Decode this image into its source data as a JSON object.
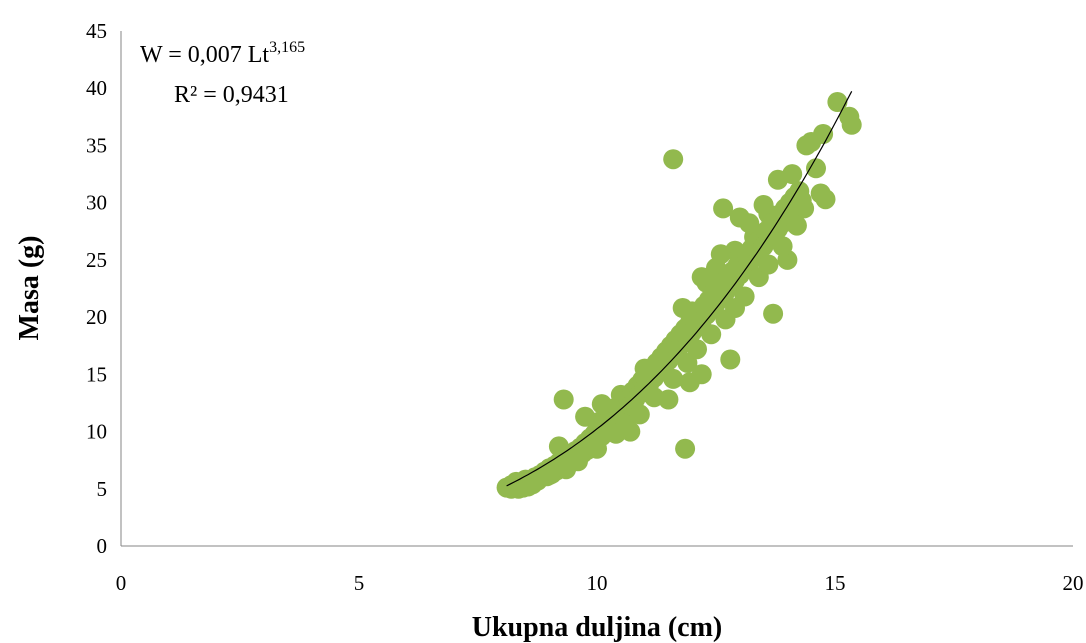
{
  "chart_data": {
    "type": "scatter",
    "title": "",
    "xlabel": "Ukupna duljina (cm)",
    "ylabel": "Masa (g)",
    "xlim": [
      0,
      20
    ],
    "ylim": [
      0,
      45
    ],
    "x_ticks": [
      "0",
      "5",
      "10",
      "15",
      "20"
    ],
    "y_ticks": [
      "0",
      "5",
      "10",
      "15",
      "20",
      "25",
      "30",
      "35",
      "40",
      "45"
    ],
    "grid": false,
    "legend": "none",
    "point_color": "#92b94e",
    "trendline_color": "#000000",
    "equation": {
      "line1_prefix": "W = 0,007 Lt",
      "line1_exponent": "3,165",
      "line2": "R² = 0,9431"
    },
    "trendline": {
      "type": "power",
      "a": 0.007,
      "b": 3.165,
      "x_range": [
        8.1,
        15.35
      ]
    },
    "series": [
      {
        "points": [
          [
            8.1,
            5.1
          ],
          [
            8.2,
            5.3
          ],
          [
            8.3,
            5.6
          ],
          [
            8.35,
            5.0
          ],
          [
            8.4,
            5.4
          ],
          [
            8.5,
            5.8
          ],
          [
            8.55,
            5.2
          ],
          [
            8.6,
            5.5
          ],
          [
            8.7,
            6.0
          ],
          [
            8.75,
            5.7
          ],
          [
            8.8,
            6.2
          ],
          [
            8.9,
            6.5
          ],
          [
            8.95,
            6.1
          ],
          [
            9.0,
            6.8
          ],
          [
            9.05,
            6.3
          ],
          [
            9.1,
            7.0
          ],
          [
            9.15,
            6.6
          ],
          [
            9.2,
            7.3
          ],
          [
            9.25,
            6.9
          ],
          [
            9.3,
            7.6
          ],
          [
            9.2,
            8.7
          ],
          [
            9.3,
            12.8
          ],
          [
            9.4,
            7.1
          ],
          [
            9.45,
            8.0
          ],
          [
            9.5,
            7.5
          ],
          [
            9.55,
            8.3
          ],
          [
            9.6,
            7.8
          ],
          [
            9.65,
            8.6
          ],
          [
            9.7,
            8.1
          ],
          [
            9.75,
            9.0
          ],
          [
            9.8,
            8.4
          ],
          [
            9.85,
            9.4
          ],
          [
            9.75,
            11.3
          ],
          [
            9.9,
            8.8
          ],
          [
            9.95,
            9.8
          ],
          [
            10.0,
            9.2
          ],
          [
            10.0,
            10.8
          ],
          [
            10.05,
            10.2
          ],
          [
            10.1,
            9.6
          ],
          [
            10.1,
            12.4
          ],
          [
            10.15,
            10.6
          ],
          [
            10.2,
            10.0
          ],
          [
            10.25,
            11.0
          ],
          [
            10.3,
            10.4
          ],
          [
            10.3,
            12.0
          ],
          [
            10.35,
            11.5
          ],
          [
            10.4,
            10.8
          ],
          [
            10.45,
            12.0
          ],
          [
            10.5,
            11.3
          ],
          [
            10.5,
            13.2
          ],
          [
            10.55,
            12.5
          ],
          [
            10.6,
            11.8
          ],
          [
            10.65,
            13.0
          ],
          [
            10.7,
            10.0
          ],
          [
            10.7,
            12.3
          ],
          [
            10.75,
            13.5
          ],
          [
            10.8,
            12.8
          ],
          [
            10.85,
            14.0
          ],
          [
            10.9,
            13.3
          ],
          [
            10.95,
            14.5
          ],
          [
            11.0,
            13.8
          ],
          [
            11.0,
            15.5
          ],
          [
            11.05,
            15.0
          ],
          [
            11.1,
            14.2
          ],
          [
            11.15,
            15.5
          ],
          [
            11.2,
            14.7
          ],
          [
            11.25,
            16.0
          ],
          [
            11.3,
            15.2
          ],
          [
            11.35,
            16.5
          ],
          [
            11.4,
            15.7
          ],
          [
            11.45,
            17.0
          ],
          [
            11.5,
            16.2
          ],
          [
            11.55,
            17.5
          ],
          [
            11.5,
            12.8
          ],
          [
            11.6,
            16.7
          ],
          [
            11.65,
            18.0
          ],
          [
            11.6,
            33.8
          ],
          [
            11.7,
            17.2
          ],
          [
            11.75,
            18.5
          ],
          [
            11.8,
            17.7
          ],
          [
            11.85,
            19.0
          ],
          [
            11.85,
            8.5
          ],
          [
            11.9,
            18.2
          ],
          [
            11.95,
            19.5
          ],
          [
            11.95,
            14.3
          ],
          [
            12.0,
            18.7
          ],
          [
            12.0,
            20.5
          ],
          [
            12.05,
            20.0
          ],
          [
            12.1,
            19.2
          ],
          [
            12.15,
            20.5
          ],
          [
            12.2,
            19.7
          ],
          [
            12.25,
            21.0
          ],
          [
            12.2,
            15.0
          ],
          [
            12.3,
            20.2
          ],
          [
            12.35,
            21.5
          ],
          [
            12.3,
            23.0
          ],
          [
            12.4,
            20.7
          ],
          [
            12.45,
            22.0
          ],
          [
            12.5,
            21.2
          ],
          [
            12.5,
            24.3
          ],
          [
            12.55,
            22.5
          ],
          [
            12.6,
            21.7
          ],
          [
            12.65,
            23.0
          ],
          [
            12.7,
            22.2
          ],
          [
            12.65,
            29.5
          ],
          [
            12.75,
            23.5
          ],
          [
            12.8,
            22.7
          ],
          [
            12.8,
            16.3
          ],
          [
            12.85,
            24.0
          ],
          [
            12.9,
            23.2
          ],
          [
            12.9,
            25.8
          ],
          [
            12.95,
            24.5
          ],
          [
            13.0,
            23.7
          ],
          [
            13.0,
            28.7
          ],
          [
            13.05,
            25.0
          ],
          [
            13.1,
            24.2
          ],
          [
            13.15,
            25.5
          ],
          [
            13.2,
            24.7
          ],
          [
            13.25,
            26.0
          ],
          [
            13.3,
            25.2
          ],
          [
            13.3,
            27.0
          ],
          [
            13.35,
            26.5
          ],
          [
            13.4,
            25.7
          ],
          [
            13.45,
            27.0
          ],
          [
            13.5,
            26.2
          ],
          [
            13.55,
            27.5
          ],
          [
            13.6,
            26.7
          ],
          [
            13.6,
            29.0
          ],
          [
            13.65,
            28.0
          ],
          [
            13.7,
            27.2
          ],
          [
            13.7,
            20.3
          ],
          [
            13.75,
            28.5
          ],
          [
            13.8,
            27.7
          ],
          [
            13.8,
            32.0
          ],
          [
            13.85,
            29.0
          ],
          [
            13.9,
            28.2
          ],
          [
            13.95,
            29.5
          ],
          [
            14.0,
            28.7
          ],
          [
            14.0,
            25.0
          ],
          [
            14.05,
            30.0
          ],
          [
            14.1,
            29.2
          ],
          [
            14.1,
            32.5
          ],
          [
            14.15,
            30.5
          ],
          [
            14.2,
            29.7
          ],
          [
            14.25,
            31.0
          ],
          [
            14.3,
            30.2
          ],
          [
            14.35,
            29.5
          ],
          [
            14.4,
            35.0
          ],
          [
            14.5,
            35.3
          ],
          [
            14.6,
            33.0
          ],
          [
            14.7,
            30.8
          ],
          [
            14.75,
            36.0
          ],
          [
            14.8,
            30.3
          ],
          [
            15.05,
            38.8
          ],
          [
            15.3,
            37.5
          ],
          [
            15.35,
            36.8
          ],
          [
            8.2,
            5.0
          ],
          [
            8.45,
            5.1
          ],
          [
            8.65,
            5.4
          ],
          [
            9.0,
            6.2
          ],
          [
            9.35,
            6.7
          ],
          [
            9.6,
            7.4
          ],
          [
            10.0,
            8.5
          ],
          [
            10.4,
            9.8
          ],
          [
            10.6,
            10.6
          ],
          [
            10.9,
            11.5
          ],
          [
            11.2,
            13.0
          ],
          [
            11.6,
            14.6
          ],
          [
            11.9,
            16.0
          ],
          [
            12.1,
            17.2
          ],
          [
            12.4,
            18.5
          ],
          [
            12.7,
            19.8
          ],
          [
            12.9,
            20.8
          ],
          [
            13.1,
            21.8
          ],
          [
            13.4,
            23.5
          ],
          [
            13.6,
            24.6
          ],
          [
            13.9,
            26.2
          ],
          [
            14.2,
            28.0
          ],
          [
            12.6,
            25.5
          ],
          [
            12.2,
            23.5
          ],
          [
            11.8,
            20.8
          ],
          [
            13.2,
            28.2
          ],
          [
            13.5,
            29.8
          ]
        ]
      }
    ]
  }
}
